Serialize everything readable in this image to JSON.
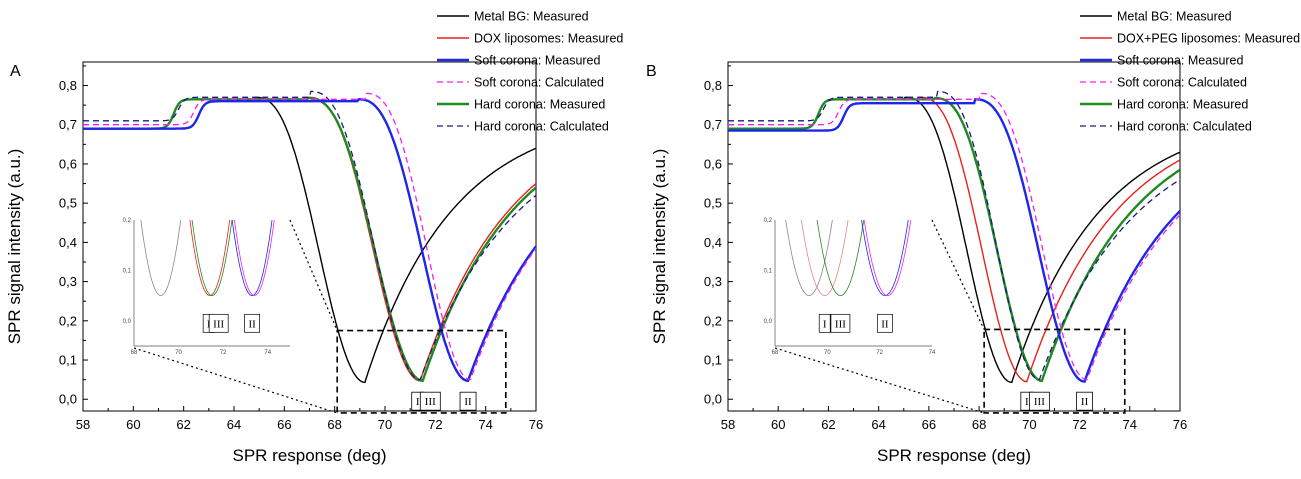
{
  "chart_data": [
    {
      "type": "line",
      "panel_label": "A",
      "xlabel": "SPR response (deg)",
      "ylabel": "SPR signal intensity (a.u.)",
      "xlim": [
        58,
        76
      ],
      "ylim": [
        -0.03,
        0.86
      ],
      "xticks": [
        "58",
        "60",
        "62",
        "64",
        "66",
        "68",
        "70",
        "72",
        "74",
        "76"
      ],
      "yticks": [
        "0,0",
        "0,1",
        "0,2",
        "0,3",
        "0,4",
        "0,5",
        "0,6",
        "0,7",
        "0,8"
      ],
      "legend_position": "top-right",
      "series": [
        {
          "name": "Metal BG: Measured",
          "color": "#000000",
          "dash": "solid",
          "width": 1.4,
          "curve": {
            "base": 0.69,
            "bumpX": 61.6,
            "bumpH": 0.075,
            "plateau": 0.77,
            "fallStart": 64.8,
            "min": 69.2,
            "minY": 0.043,
            "leftW": 1.6,
            "rightY": 0.64,
            "rightW": 6.3
          }
        },
        {
          "name": "DOX liposomes: Measured",
          "color": "#e8201c",
          "dash": "solid",
          "width": 1.4,
          "curve": {
            "base": 0.69,
            "bumpX": 61.6,
            "bumpH": 0.075,
            "plateau": 0.77,
            "fallStart": 66.9,
            "min": 71.4,
            "minY": 0.047,
            "leftW": 1.6,
            "rightY": 0.55,
            "rightW": 6.6
          }
        },
        {
          "name": "Soft corona: Measured",
          "color": "#1f26e8",
          "dash": "solid",
          "width": 2.4,
          "curve": {
            "base": 0.69,
            "bumpX": 62.6,
            "bumpH": 0.07,
            "plateau": 0.765,
            "fallStart": 68.9,
            "min": 73.3,
            "minY": 0.047,
            "leftW": 1.6,
            "rightY": 0.39,
            "rightW": 6.6
          }
        },
        {
          "name": "Soft corona: Calculated",
          "color": "#ee22ee",
          "dash": "dashed",
          "width": 1.3,
          "curve": {
            "base": 0.7,
            "bumpX": 62.4,
            "bumpH": 0.065,
            "plateau": 0.78,
            "fallStart": 69.2,
            "min": 73.4,
            "minY": 0.05,
            "leftW": 1.55,
            "rightY": 0.385,
            "rightW": 6.7
          }
        },
        {
          "name": "Hard corona: Measured",
          "color": "#1f8a1f",
          "dash": "solid",
          "width": 2.4,
          "curve": {
            "base": 0.69,
            "bumpX": 61.6,
            "bumpH": 0.075,
            "plateau": 0.768,
            "fallStart": 66.9,
            "min": 71.5,
            "minY": 0.047,
            "leftW": 1.6,
            "rightY": 0.54,
            "rightW": 6.6
          }
        },
        {
          "name": "Hard corona: Calculated",
          "color": "#1a1a7a",
          "dash": "dashed",
          "width": 1.3,
          "curve": {
            "base": 0.71,
            "bumpX": 61.8,
            "bumpH": 0.06,
            "plateau": 0.785,
            "fallStart": 67.0,
            "min": 71.4,
            "minY": 0.05,
            "leftW": 1.55,
            "rightY": 0.52,
            "rightW": 6.8
          }
        }
      ],
      "zoom_box": {
        "x": [
          68.1,
          74.8
        ],
        "y": [
          -0.035,
          0.175
        ]
      },
      "markers": [
        {
          "label": "I",
          "x": 71.3
        },
        {
          "label": "III",
          "x": 71.8
        },
        {
          "label": "II",
          "x": 73.3
        }
      ],
      "inset": {
        "xlim": [
          68,
          75
        ],
        "ylim": [
          -0.05,
          0.2
        ],
        "xticks": [
          "68",
          "70",
          "72",
          "74"
        ],
        "yticks": [
          "0,0",
          "0,1",
          "0,2"
        ],
        "minima": [
          {
            "color": "#888888",
            "x": 69.2
          },
          {
            "color": "#e8201c",
            "x": 71.4
          },
          {
            "color": "#1f8a1f",
            "x": 71.5
          },
          {
            "color": "#1f26e8",
            "x": 73.3
          },
          {
            "color": "#ee22ee",
            "x": 73.4
          }
        ],
        "markers": [
          {
            "label": "I",
            "x": 71.35
          },
          {
            "label": "III",
            "x": 71.8
          },
          {
            "label": "II",
            "x": 73.3
          }
        ]
      }
    },
    {
      "type": "line",
      "panel_label": "B",
      "xlabel": "SPR response (deg)",
      "ylabel": "SPR signal intensity (a.u.)",
      "xlim": [
        58,
        76
      ],
      "ylim": [
        -0.03,
        0.86
      ],
      "xticks": [
        "58",
        "60",
        "62",
        "64",
        "66",
        "68",
        "70",
        "72",
        "74",
        "76"
      ],
      "yticks": [
        "0,0",
        "0,1",
        "0,2",
        "0,3",
        "0,4",
        "0,5",
        "0,6",
        "0,7",
        "0,8"
      ],
      "legend_position": "top-right",
      "series": [
        {
          "name": "Metal BG: Measured",
          "color": "#000000",
          "dash": "solid",
          "width": 1.4,
          "curve": {
            "base": 0.69,
            "bumpX": 61.6,
            "bumpH": 0.075,
            "plateau": 0.77,
            "fallStart": 65.0,
            "min": 69.3,
            "minY": 0.043,
            "leftW": 1.6,
            "rightY": 0.63,
            "rightW": 6.3
          }
        },
        {
          "name": "DOX+PEG liposomes: Measured",
          "color": "#e8201c",
          "dash": "solid",
          "width": 1.4,
          "curve": {
            "base": 0.69,
            "bumpX": 61.6,
            "bumpH": 0.075,
            "plateau": 0.77,
            "fallStart": 65.6,
            "min": 69.9,
            "minY": 0.045,
            "leftW": 1.6,
            "rightY": 0.61,
            "rightW": 6.5
          }
        },
        {
          "name": "Soft corona: Measured",
          "color": "#1f26e8",
          "dash": "solid",
          "width": 2.4,
          "curve": {
            "base": 0.685,
            "bumpX": 62.6,
            "bumpH": 0.07,
            "plateau": 0.765,
            "fallStart": 67.8,
            "min": 72.2,
            "minY": 0.045,
            "leftW": 1.6,
            "rightY": 0.48,
            "rightW": 6.6
          }
        },
        {
          "name": "Soft corona: Calculated",
          "color": "#ee22ee",
          "dash": "dashed",
          "width": 1.3,
          "curve": {
            "base": 0.7,
            "bumpX": 62.4,
            "bumpH": 0.065,
            "plateau": 0.78,
            "fallStart": 68.0,
            "min": 72.3,
            "minY": 0.05,
            "leftW": 1.55,
            "rightY": 0.47,
            "rightW": 6.7
          }
        },
        {
          "name": "Hard corona: Measured",
          "color": "#1f8a1f",
          "dash": "solid",
          "width": 2.4,
          "curve": {
            "base": 0.69,
            "bumpX": 61.6,
            "bumpH": 0.075,
            "plateau": 0.768,
            "fallStart": 66.2,
            "min": 70.5,
            "minY": 0.047,
            "leftW": 1.6,
            "rightY": 0.585,
            "rightW": 6.6
          }
        },
        {
          "name": "Hard corona: Calculated",
          "color": "#1a1a7a",
          "dash": "dashed",
          "width": 1.3,
          "curve": {
            "base": 0.71,
            "bumpX": 61.8,
            "bumpH": 0.06,
            "plateau": 0.785,
            "fallStart": 66.3,
            "min": 70.4,
            "minY": 0.05,
            "leftW": 1.55,
            "rightY": 0.56,
            "rightW": 6.8
          }
        }
      ],
      "zoom_box": {
        "x": [
          68.2,
          73.8
        ],
        "y": [
          -0.035,
          0.178
        ]
      },
      "markers": [
        {
          "label": "I",
          "x": 69.9
        },
        {
          "label": "III",
          "x": 70.4
        },
        {
          "label": "II",
          "x": 72.2
        }
      ],
      "inset": {
        "xlim": [
          68,
          74
        ],
        "ylim": [
          -0.05,
          0.2
        ],
        "xticks": [
          "68",
          "70",
          "72",
          "74"
        ],
        "yticks": [
          "0,0",
          "0,1",
          "0,2"
        ],
        "minima": [
          {
            "color": "#888888",
            "x": 69.3
          },
          {
            "color": "#f08080",
            "x": 69.9
          },
          {
            "color": "#1f8a1f",
            "x": 70.5
          },
          {
            "color": "#1f26e8",
            "x": 72.2
          },
          {
            "color": "#ee22ee",
            "x": 72.3
          }
        ],
        "markers": [
          {
            "label": "I",
            "x": 69.9
          },
          {
            "label": "III",
            "x": 70.5
          },
          {
            "label": "II",
            "x": 72.2
          }
        ]
      }
    }
  ]
}
